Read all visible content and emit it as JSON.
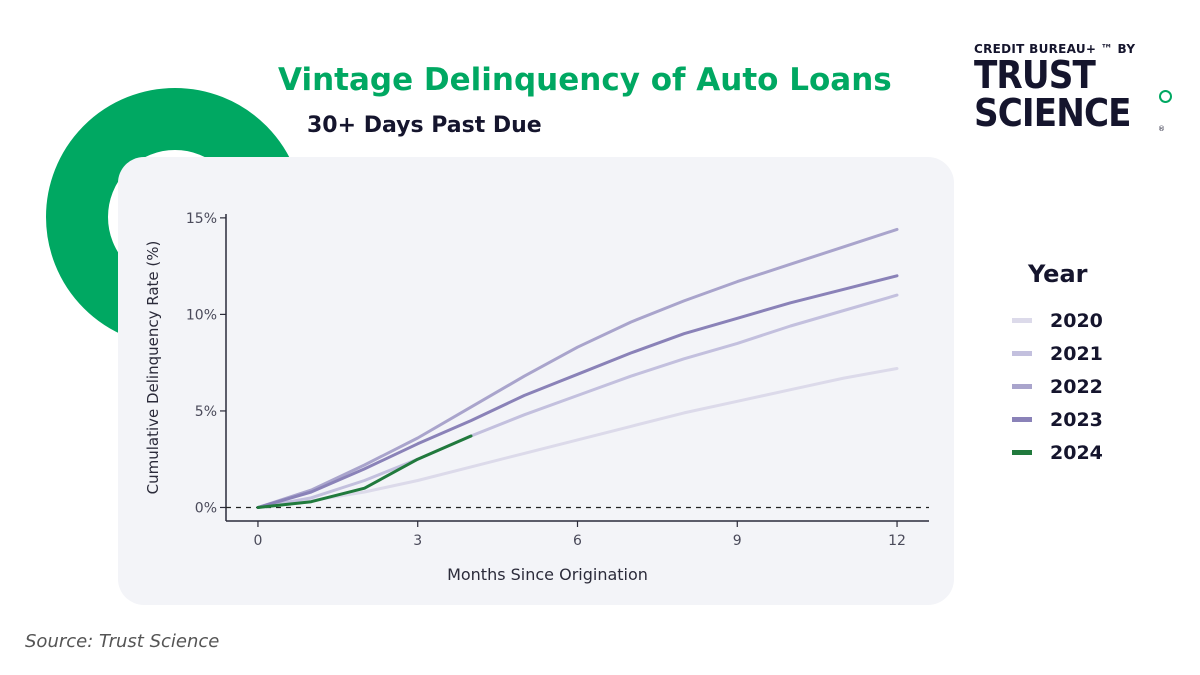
{
  "title": "Vintage Delinquency of Auto Loans",
  "subtitle": "30+ Days Past Due",
  "logo": {
    "top_line": "CREDIT BUREAU+ ™ BY",
    "line1": "TRUST",
    "line2": "SCIENCE",
    "mark": "®"
  },
  "source": "Source: Trust Science",
  "colors": {
    "accent_green": "#00a862",
    "panel": "#f3f4f8",
    "text_dark": "#15152d"
  },
  "chart_data": {
    "type": "line",
    "xlabel": "Months Since Origination",
    "ylabel": "Cumulative Delinquency Rate (%)",
    "xlim": [
      -0.6,
      12.6
    ],
    "ylim": [
      -0.7,
      15.2
    ],
    "x_ticks": [
      0,
      3,
      6,
      9,
      12
    ],
    "x_tick_labels": [
      "0",
      "3",
      "6",
      "9",
      "12"
    ],
    "y_ticks": [
      0,
      5,
      10,
      15
    ],
    "y_tick_labels": [
      "0%",
      "5%",
      "10%",
      "15%"
    ],
    "reference_line": {
      "y": 0,
      "style": "dashed"
    },
    "grid": false,
    "legend_title": "Year",
    "legend_position": "right",
    "series": [
      {
        "name": "2020",
        "color": "#dcdaea",
        "width": 3,
        "x": [
          0,
          1,
          2,
          3,
          4,
          5,
          6,
          7,
          8,
          9,
          10,
          11,
          12
        ],
        "y": [
          0,
          0.35,
          0.8,
          1.4,
          2.1,
          2.8,
          3.5,
          4.2,
          4.9,
          5.5,
          6.1,
          6.7,
          7.2
        ]
      },
      {
        "name": "2021",
        "color": "#c3c0de",
        "width": 3,
        "x": [
          0,
          1,
          2,
          3,
          4,
          5,
          6,
          7,
          8,
          9,
          10,
          11,
          12
        ],
        "y": [
          0,
          0.5,
          1.4,
          2.5,
          3.7,
          4.8,
          5.8,
          6.8,
          7.7,
          8.5,
          9.4,
          10.2,
          11.0
        ]
      },
      {
        "name": "2022",
        "color": "#a9a4cc",
        "width": 3,
        "x": [
          0,
          1,
          2,
          3,
          4,
          5,
          6,
          7,
          8,
          9,
          10,
          11,
          12
        ],
        "y": [
          0,
          0.9,
          2.2,
          3.6,
          5.2,
          6.8,
          8.3,
          9.6,
          10.7,
          11.7,
          12.6,
          13.5,
          14.4
        ]
      },
      {
        "name": "2023",
        "color": "#8a82b8",
        "width": 3,
        "x": [
          0,
          1,
          2,
          3,
          4,
          5,
          6,
          7,
          8,
          9,
          10,
          11,
          12
        ],
        "y": [
          0,
          0.8,
          2.0,
          3.3,
          4.5,
          5.8,
          6.9,
          8.0,
          9.0,
          9.8,
          10.6,
          11.3,
          12.0
        ]
      },
      {
        "name": "2024",
        "color": "#217a3d",
        "width": 3,
        "x": [
          0,
          1,
          2,
          3,
          4
        ],
        "y": [
          0,
          0.3,
          1.0,
          2.5,
          3.7
        ]
      }
    ]
  }
}
